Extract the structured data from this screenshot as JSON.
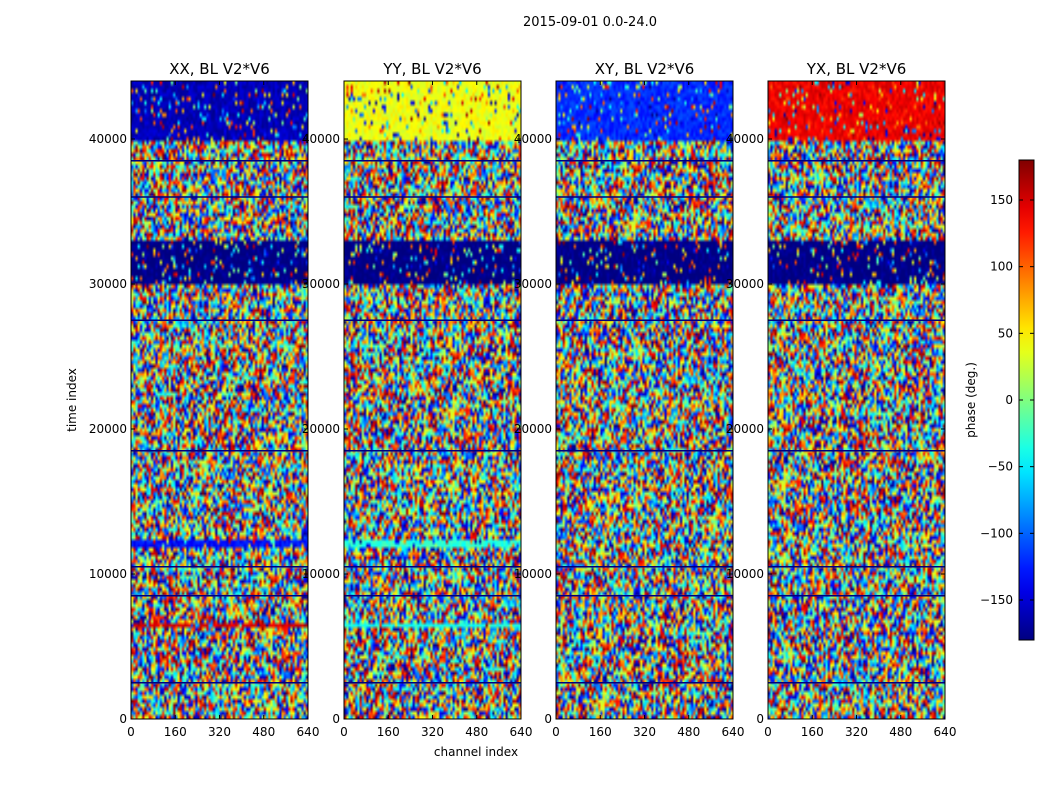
{
  "suptitle": "2015-09-01 0.0-24.0",
  "chart_data": [
    {
      "type": "heatmap",
      "title": "XX, BL V2*V6",
      "xlabel": "",
      "ylabel": "time index",
      "xlim": [
        0,
        640
      ],
      "ylim": [
        0,
        44000
      ],
      "xticks": [
        0,
        160,
        320,
        480,
        640
      ],
      "yticks": [
        0,
        10000,
        20000,
        30000,
        40000
      ],
      "rows": 44000,
      "columns": 640,
      "bands": [
        {
          "y0": 30000,
          "y1": 33000,
          "phase": -180
        },
        {
          "y0": 11800,
          "y1": 12300,
          "phase": -130
        },
        {
          "y0": 6200,
          "y1": 6500,
          "phase": 150
        },
        {
          "y0": 40000,
          "y1": 44000,
          "phase": -160
        }
      ]
    },
    {
      "type": "heatmap",
      "title": "YY, BL V2*V6",
      "xlabel": "channel index",
      "ylabel": "",
      "xlim": [
        0,
        640
      ],
      "ylim": [
        0,
        44000
      ],
      "xticks": [
        0,
        160,
        320,
        480,
        640
      ],
      "yticks": [
        0,
        10000,
        20000,
        30000,
        40000
      ],
      "rows": 44000,
      "columns": 640,
      "bands": [
        {
          "y0": 30000,
          "y1": 33000,
          "phase": -180
        },
        {
          "y0": 11800,
          "y1": 12300,
          "phase": -30
        },
        {
          "y0": 6200,
          "y1": 6500,
          "phase": -40
        },
        {
          "y0": 40000,
          "y1": 44000,
          "phase": 40
        }
      ]
    },
    {
      "type": "heatmap",
      "title": "XY, BL V2*V6",
      "xlabel": "",
      "ylabel": "",
      "xlim": [
        0,
        640
      ],
      "ylim": [
        0,
        44000
      ],
      "xticks": [
        0,
        160,
        320,
        480,
        640
      ],
      "yticks": [
        0,
        10000,
        20000,
        30000,
        40000
      ],
      "rows": 44000,
      "columns": 640,
      "bands": [
        {
          "y0": 30000,
          "y1": 33000,
          "phase": -180
        },
        {
          "y0": 40000,
          "y1": 44000,
          "phase": -120
        }
      ]
    },
    {
      "type": "heatmap",
      "title": "YX, BL V2*V6",
      "xlabel": "",
      "ylabel": "",
      "xlim": [
        0,
        640
      ],
      "ylim": [
        0,
        44000
      ],
      "xticks": [
        0,
        160,
        320,
        480,
        640
      ],
      "yticks": [
        0,
        10000,
        20000,
        30000,
        40000
      ],
      "rows": 44000,
      "columns": 640,
      "bands": [
        {
          "y0": 30000,
          "y1": 33000,
          "phase": -180
        },
        {
          "y0": 40000,
          "y1": 44000,
          "phase": 140
        }
      ]
    }
  ],
  "colorbar": {
    "label": "phase (deg.)",
    "range": [
      -180,
      180
    ],
    "ticks": [
      150,
      100,
      50,
      0,
      -50,
      -100,
      -150
    ],
    "tick_labels": [
      "150",
      "100",
      "50",
      "0",
      "−50",
      "−100",
      "−150"
    ],
    "colormap": "jet",
    "colors": [
      "#00007f",
      "#0000ff",
      "#007fff",
      "#00ffff",
      "#7fff7f",
      "#ffff00",
      "#ff7f00",
      "#ff0000",
      "#7f0000"
    ]
  }
}
